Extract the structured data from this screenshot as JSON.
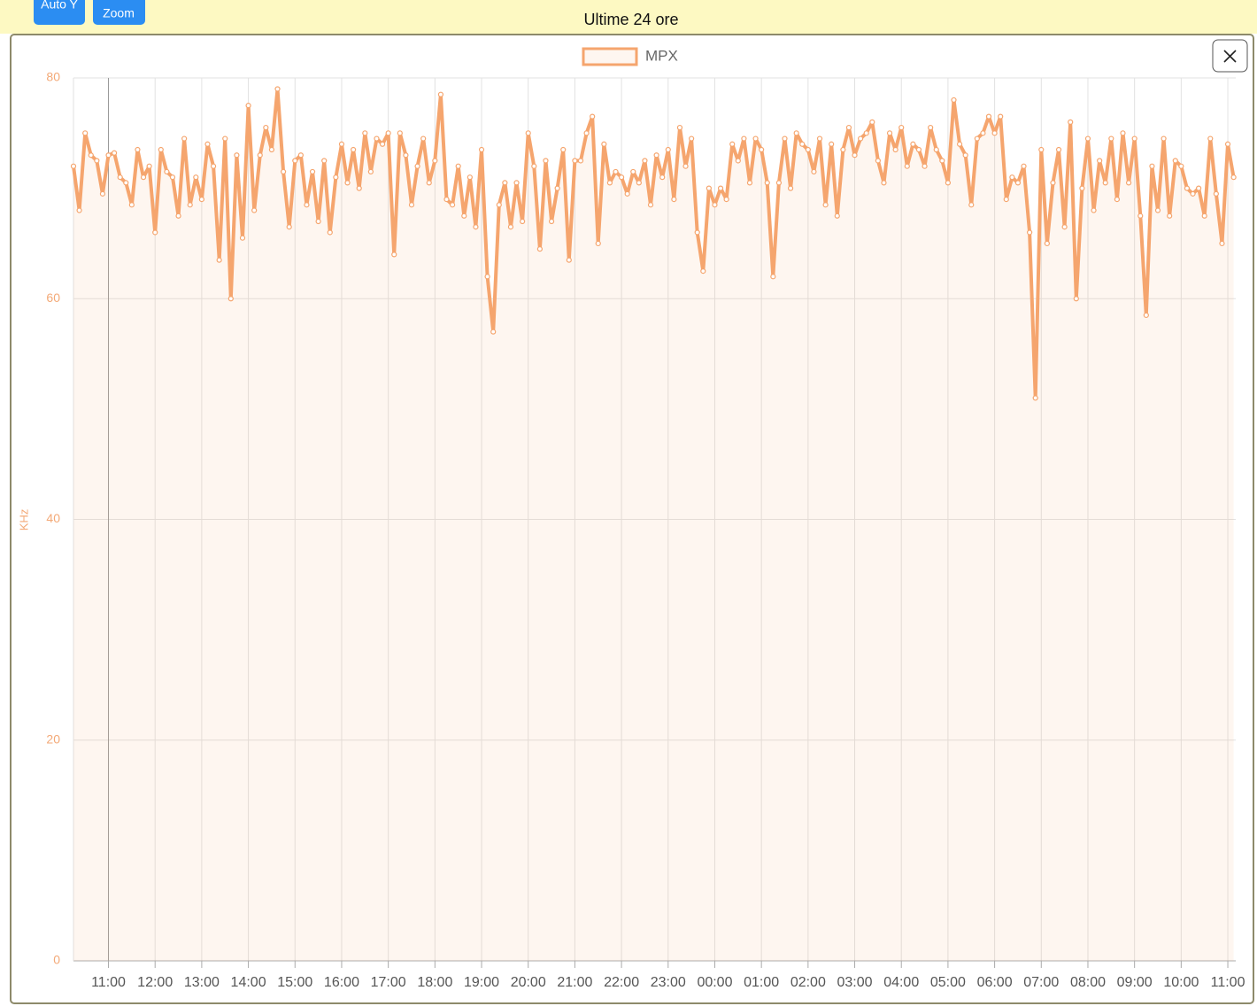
{
  "header": {
    "buttons": [
      "Auto Y",
      "Zoom"
    ],
    "subtitle": "Ultime 24 ore"
  },
  "chart_data": {
    "type": "line",
    "y_label": "KHz",
    "legend_position": "top",
    "xlim": [
      10.25,
      35.17
    ],
    "ylim": [
      0,
      80
    ],
    "yticks": [
      0,
      20,
      40,
      60,
      80
    ],
    "grid": true,
    "xticks": [
      {
        "value": 11,
        "label": "11:00"
      },
      {
        "value": 12,
        "label": "12:00"
      },
      {
        "value": 13,
        "label": "13:00"
      },
      {
        "value": 14,
        "label": "14:00"
      },
      {
        "value": 15,
        "label": "15:00"
      },
      {
        "value": 16,
        "label": "16:00"
      },
      {
        "value": 17,
        "label": "17:00"
      },
      {
        "value": 18,
        "label": "18:00"
      },
      {
        "value": 19,
        "label": "19:00"
      },
      {
        "value": 20,
        "label": "20:00"
      },
      {
        "value": 21,
        "label": "21:00"
      },
      {
        "value": 22,
        "label": "22:00"
      },
      {
        "value": 23,
        "label": "23:00"
      },
      {
        "value": 24,
        "label": "00:00"
      },
      {
        "value": 25,
        "label": "01:00"
      },
      {
        "value": 26,
        "label": "02:00"
      },
      {
        "value": 27,
        "label": "03:00"
      },
      {
        "value": 28,
        "label": "04:00"
      },
      {
        "value": 29,
        "label": "05:00"
      },
      {
        "value": 30,
        "label": "06:00"
      },
      {
        "value": 31,
        "label": "07:00"
      },
      {
        "value": 32,
        "label": "08:00"
      },
      {
        "value": 33,
        "label": "09:00"
      },
      {
        "value": 34,
        "label": "10:00"
      },
      {
        "value": 35,
        "label": "11:00"
      }
    ],
    "x": [
      10.25,
      10.375,
      10.5,
      10.625,
      10.75,
      10.875,
      11,
      11.125,
      11.25,
      11.375,
      11.5,
      11.625,
      11.75,
      11.875,
      12,
      12.125,
      12.25,
      12.375,
      12.5,
      12.625,
      12.75,
      12.875,
      13,
      13.125,
      13.25,
      13.375,
      13.5,
      13.625,
      13.75,
      13.875,
      14,
      14.125,
      14.25,
      14.375,
      14.5,
      14.625,
      14.75,
      14.875,
      15,
      15.125,
      15.25,
      15.375,
      15.5,
      15.625,
      15.75,
      15.875,
      16,
      16.125,
      16.25,
      16.375,
      16.5,
      16.625,
      16.75,
      16.875,
      17,
      17.125,
      17.25,
      17.375,
      17.5,
      17.625,
      17.75,
      17.875,
      18,
      18.125,
      18.25,
      18.375,
      18.5,
      18.625,
      18.75,
      18.875,
      19,
      19.125,
      19.25,
      19.375,
      19.5,
      19.625,
      19.75,
      19.875,
      20,
      20.125,
      20.25,
      20.375,
      20.5,
      20.625,
      20.75,
      20.875,
      21,
      21.125,
      21.25,
      21.375,
      21.5,
      21.625,
      21.75,
      21.875,
      22,
      22.125,
      22.25,
      22.375,
      22.5,
      22.625,
      22.75,
      22.875,
      23,
      23.125,
      23.25,
      23.375,
      23.5,
      23.625,
      23.75,
      23.875,
      24,
      24.125,
      24.25,
      24.375,
      24.5,
      24.625,
      24.75,
      24.875,
      25,
      25.125,
      25.25,
      25.375,
      25.5,
      25.625,
      25.75,
      25.875,
      26,
      26.125,
      26.25,
      26.375,
      26.5,
      26.625,
      26.75,
      26.875,
      27,
      27.125,
      27.25,
      27.375,
      27.5,
      27.625,
      27.75,
      27.875,
      28,
      28.125,
      28.25,
      28.375,
      28.5,
      28.625,
      28.75,
      28.875,
      29,
      29.125,
      29.25,
      29.375,
      29.5,
      29.625,
      29.75,
      29.875,
      30,
      30.125,
      30.25,
      30.375,
      30.5,
      30.625,
      30.75,
      30.875,
      31,
      31.125,
      31.25,
      31.375,
      31.5,
      31.625,
      31.75,
      31.875,
      32,
      32.125,
      32.25,
      32.375,
      32.5,
      32.625,
      32.75,
      32.875,
      33,
      33.125,
      33.25,
      33.375,
      33.5,
      33.625,
      33.75,
      33.875,
      34,
      34.125,
      34.25,
      34.375,
      34.5,
      34.625,
      34.75,
      34.875,
      35,
      35.125
    ],
    "series": [
      {
        "name": "MPX",
        "color": "#f5a56e",
        "values": [
          72,
          68,
          75,
          73,
          72.5,
          69.5,
          73,
          73.2,
          71,
          70.5,
          68.5,
          73.5,
          71,
          72,
          66,
          73.5,
          71.5,
          71,
          67.5,
          74.5,
          68.5,
          71,
          69,
          74,
          72,
          63.5,
          74.5,
          60,
          73,
          65.5,
          77.5,
          68,
          73,
          75.5,
          73.5,
          79,
          71.5,
          66.5,
          72.5,
          73,
          68.5,
          71.5,
          67,
          72.5,
          66,
          71,
          74,
          70.5,
          73.5,
          70,
          75,
          71.5,
          74.5,
          74,
          75,
          64,
          75,
          73,
          68.5,
          72,
          74.5,
          70.5,
          72.5,
          78.5,
          69,
          68.5,
          72,
          67.5,
          71,
          66.5,
          73.5,
          62,
          57,
          68.5,
          70.5,
          66.5,
          70.5,
          67,
          75,
          72,
          64.5,
          72.5,
          67,
          70,
          73.5,
          63.5,
          72.5,
          72.5,
          75,
          76.5,
          65,
          74,
          70.5,
          71.5,
          71,
          69.5,
          71.5,
          70.5,
          72.5,
          68.5,
          73,
          71,
          73.5,
          69,
          75.5,
          72,
          74.5,
          66,
          62.5,
          70,
          68.5,
          70,
          69,
          74,
          72.5,
          74.5,
          70.5,
          74.5,
          73.5,
          70.5,
          62,
          70.5,
          74.5,
          70,
          75,
          74,
          73.5,
          71.5,
          74.5,
          68.5,
          74,
          67.5,
          73.5,
          75.5,
          73,
          74.5,
          75,
          76,
          72.5,
          70.5,
          75,
          73.5,
          75.5,
          72,
          74,
          73.5,
          72,
          75.5,
          73.5,
          72.5,
          70.5,
          78,
          74,
          73,
          68.5,
          74.5,
          75,
          76.5,
          75,
          76.5,
          69,
          71,
          70.5,
          72,
          66,
          51,
          73.5,
          65,
          70.5,
          73.5,
          66.5,
          76,
          60,
          70,
          74.5,
          68,
          72.5,
          70.5,
          74.5,
          69,
          75,
          70.5,
          74.5,
          67.5,
          58.5,
          72,
          68,
          74.5,
          67.5,
          72.5,
          72,
          70,
          69.5,
          70,
          67.5,
          74.5,
          69.5,
          65,
          74,
          71
        ]
      }
    ]
  }
}
